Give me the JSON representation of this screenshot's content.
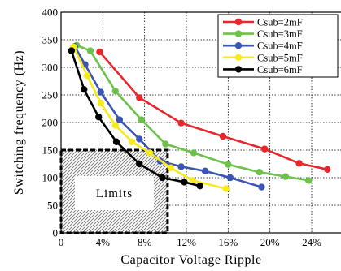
{
  "chart_data": {
    "type": "line",
    "xlabel": "Capacitor Voltage Ripple",
    "ylabel": "Switching frequency (Hz)",
    "xlim": [
      0,
      25
    ],
    "ylim": [
      0,
      400
    ],
    "x_ticks": [
      {
        "value": 0,
        "label": "0"
      },
      {
        "value": 4,
        "label": "4%"
      },
      {
        "value": 8,
        "label": "8%"
      },
      {
        "value": 12,
        "label": "12%"
      },
      {
        "value": 16,
        "label": "16%"
      },
      {
        "value": 20,
        "label": "20%"
      },
      {
        "value": 24,
        "label": "24%"
      }
    ],
    "y_ticks": [
      0,
      50,
      100,
      150,
      200,
      250,
      300,
      350,
      400
    ],
    "grid": true,
    "legend_position": "top-right",
    "annotation": {
      "label": "Limits",
      "x_range": [
        0,
        10.2
      ],
      "y_range": [
        0,
        150
      ]
    },
    "series": [
      {
        "name": "Csub=2mF",
        "color": "#e8262b",
        "x": [
          3.7,
          7.5,
          11.5,
          15.5,
          19.5,
          22.8,
          25.5
        ],
        "y": [
          328,
          245,
          199,
          175,
          152,
          126,
          115
        ]
      },
      {
        "name": "Csub=3mF",
        "color": "#6cc24a",
        "x": [
          1.5,
          2.8,
          5.2,
          7.7,
          10,
          12.7,
          16,
          19,
          21.5,
          23.7
        ],
        "y": [
          340,
          330,
          257,
          205,
          161,
          145,
          124,
          110,
          102,
          95
        ]
      },
      {
        "name": "Csub=4mF",
        "color": "#3a55b4",
        "x": [
          1.3,
          2.3,
          3.8,
          5.6,
          7.5,
          9.5,
          11.5,
          13.8,
          16.2,
          19.2
        ],
        "y": [
          338,
          305,
          255,
          205,
          170,
          130,
          120,
          112,
          100,
          83
        ]
      },
      {
        "name": "Csub=5mF",
        "color": "#f7ea1a",
        "x": [
          1.2,
          2.5,
          3.8,
          5.2,
          6.8,
          8.5,
          10.5,
          12.6,
          15.8
        ],
        "y": [
          337,
          285,
          235,
          195,
          165,
          145,
          118,
          95,
          80
        ]
      },
      {
        "name": "Csub=6mF",
        "color": "#000000",
        "x": [
          1.0,
          2.2,
          3.6,
          5.3,
          7.5,
          9.7,
          11.8,
          13.3
        ],
        "y": [
          330,
          260,
          210,
          165,
          125,
          100,
          92,
          85
        ]
      }
    ]
  }
}
